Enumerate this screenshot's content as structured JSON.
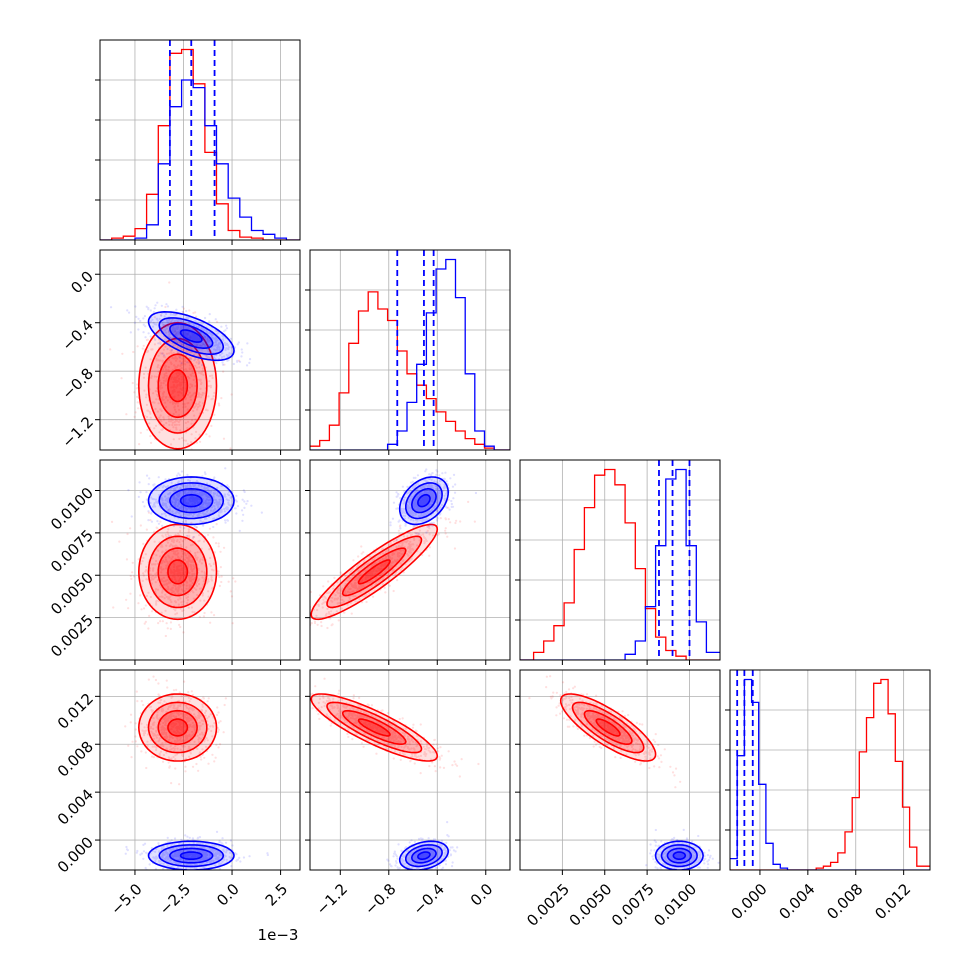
{
  "figure": {
    "x_offset_text": "1e−3",
    "colors": {
      "red": "#ff0000",
      "blue": "#0000ff"
    }
  },
  "chart_data": {
    "type": "scatter",
    "subtype": "corner-plot",
    "parameters": 4,
    "series": [
      {
        "color": "#0000ff",
        "means": [
          -0.0021,
          -0.51,
          0.0094,
          -0.0013
        ],
        "sds": [
          0.0011,
          0.1,
          0.0007,
          0.0006
        ],
        "corr_12": -0.6,
        "corr_23": 0.35,
        "corr_24": 0.3,
        "corr_34": 0.0,
        "quantile_lines": [
          [
            -0.0032,
            -0.0021,
            -0.0009
          ],
          [
            -0.73,
            -0.51,
            -0.43
          ],
          [
            0.0082,
            0.009,
            0.01
          ],
          [
            -0.0019,
            -0.0013,
            -0.0006
          ]
        ]
      },
      {
        "color": "#ff0000",
        "means": [
          -0.0028,
          -0.92,
          0.0052,
          0.0094
        ],
        "sds": [
          0.001,
          0.26,
          0.0014,
          0.0014
        ],
        "corr_23": 0.9,
        "corr_24": -0.85,
        "corr_34": -0.8
      }
    ],
    "panels": [
      {
        "row": 0,
        "col": 0,
        "kind": "hist",
        "xlim": [
          -0.0068,
          0.0035
        ],
        "ylim": [
          0,
          1.0
        ],
        "x_ticks": [
          -0.005,
          -0.0025,
          0.0,
          0.0025
        ],
        "x_tick_labels": [],
        "bins": [
          -0.0068,
          -0.0062,
          -0.0056,
          -0.005,
          -0.0044,
          -0.0038,
          -0.0032,
          -0.0026,
          -0.002,
          -0.0014,
          -0.0008,
          -0.0002,
          0.0004,
          0.001,
          0.0016,
          0.0022,
          0.0028,
          0.0035
        ],
        "counts_red": [
          0.0,
          0.01,
          0.02,
          0.06,
          0.24,
          0.6,
          0.98,
          1.0,
          0.82,
          0.46,
          0.19,
          0.05,
          0.015,
          0.01,
          0.0,
          0.0,
          0.0
        ],
        "counts_blue": [
          0.0,
          0.0,
          0.0,
          0.01,
          0.08,
          0.4,
          0.7,
          0.84,
          0.8,
          0.6,
          0.4,
          0.22,
          0.12,
          0.05,
          0.03,
          0.01,
          0.0
        ],
        "vlines": [
          -0.0032,
          -0.0021,
          -0.0009
        ]
      },
      {
        "row": 1,
        "col": 1,
        "kind": "hist",
        "xlim": [
          -1.45,
          0.2
        ],
        "ylim": [
          0,
          1.0
        ],
        "x_ticks": [
          -1.2,
          -0.8,
          -0.4,
          0.0
        ],
        "x_tick_labels": [],
        "bins": [
          -1.45,
          -1.37,
          -1.29,
          -1.21,
          -1.13,
          -1.05,
          -0.97,
          -0.89,
          -0.81,
          -0.73,
          -0.65,
          -0.57,
          -0.49,
          -0.41,
          -0.33,
          -0.25,
          -0.17,
          -0.09,
          -0.01,
          0.07,
          0.2
        ],
        "counts_red": [
          0.02,
          0.05,
          0.13,
          0.3,
          0.56,
          0.73,
          0.83,
          0.74,
          0.68,
          0.52,
          0.4,
          0.34,
          0.27,
          0.2,
          0.15,
          0.1,
          0.06,
          0.03,
          0.01,
          0.0
        ],
        "counts_blue": [
          0.0,
          0.0,
          0.0,
          0.0,
          0.0,
          0.0,
          0.0,
          0.0,
          0.03,
          0.1,
          0.25,
          0.45,
          0.72,
          0.95,
          1.0,
          0.8,
          0.4,
          0.1,
          0.02,
          0.0
        ],
        "vlines": [
          -0.73,
          -0.51,
          -0.43
        ]
      },
      {
        "row": 2,
        "col": 2,
        "kind": "hist",
        "xlim": [
          0.0,
          0.0118
        ],
        "ylim": [
          0,
          1.0
        ],
        "x_ticks": [
          0.0025,
          0.005,
          0.0075,
          0.01
        ],
        "x_tick_labels": [],
        "bins": [
          0.0,
          0.0008,
          0.0014,
          0.002,
          0.0026,
          0.0032,
          0.0038,
          0.0044,
          0.005,
          0.0056,
          0.0062,
          0.0068,
          0.0074,
          0.008,
          0.0086,
          0.0092,
          0.0098,
          0.0104,
          0.011,
          0.0118
        ],
        "counts_red": [
          0.0,
          0.04,
          0.1,
          0.18,
          0.3,
          0.58,
          0.8,
          0.97,
          1.0,
          0.92,
          0.72,
          0.48,
          0.27,
          0.12,
          0.05,
          0.02,
          0.0,
          0.0,
          0.0
        ],
        "counts_blue": [
          0.0,
          0.0,
          0.0,
          0.0,
          0.0,
          0.0,
          0.0,
          0.0,
          0.0,
          0.0,
          0.03,
          0.1,
          0.28,
          0.6,
          0.95,
          1.0,
          0.6,
          0.2,
          0.04
        ],
        "vlines": [
          0.0082,
          0.009,
          0.01
        ]
      },
      {
        "row": 3,
        "col": 3,
        "kind": "hist",
        "xlim": [
          -0.0025,
          0.0142
        ],
        "ylim": [
          0,
          1.0
        ],
        "x_ticks": [
          0.0,
          0.004,
          0.008,
          0.012
        ],
        "x_tick_labels": [
          "0.000",
          "0.004",
          "0.008",
          "0.012"
        ],
        "bins": [
          -0.0025,
          -0.0019,
          -0.0013,
          -0.0007,
          -0.0001,
          0.0005,
          0.0011,
          0.0017,
          0.0023,
          0.0029,
          0.0035,
          0.0041,
          0.0047,
          0.0053,
          0.0059,
          0.0065,
          0.0071,
          0.0077,
          0.0083,
          0.0089,
          0.0095,
          0.0101,
          0.0107,
          0.0113,
          0.0119,
          0.0125,
          0.0131,
          0.0142
        ],
        "counts_red": [
          0,
          0,
          0,
          0,
          0,
          0,
          0,
          0,
          0,
          0,
          0,
          0,
          0.01,
          0.02,
          0.04,
          0.09,
          0.2,
          0.38,
          0.62,
          0.8,
          0.98,
          1.0,
          0.82,
          0.57,
          0.33,
          0.12,
          0.02
        ],
        "counts_blue": [
          0.06,
          0.6,
          1.0,
          0.88,
          0.45,
          0.14,
          0.03,
          0.01,
          0,
          0,
          0,
          0,
          0,
          0,
          0,
          0,
          0,
          0,
          0,
          0,
          0,
          0,
          0,
          0,
          0,
          0,
          0
        ],
        "vlines": [
          -0.0019,
          -0.0013,
          -0.0006
        ]
      },
      {
        "row": 1,
        "col": 0,
        "kind": "2d",
        "xlim": [
          -0.0068,
          0.0035
        ],
        "ylim": [
          -1.45,
          0.2
        ],
        "x_ticks": [
          -0.005,
          -0.0025,
          0.0,
          0.0025
        ],
        "x_tick_labels": [],
        "y_ticks": [
          -1.2,
          -0.8,
          -0.4,
          0.0
        ],
        "y_tick_labels": [
          "−1.2",
          "−0.8",
          "−0.4",
          "0.0"
        ],
        "xi": 0,
        "yi": 1
      },
      {
        "row": 2,
        "col": 0,
        "kind": "2d",
        "xlim": [
          -0.0068,
          0.0035
        ],
        "ylim": [
          0.0,
          0.0118
        ],
        "x_ticks": [
          -0.005,
          -0.0025,
          0.0,
          0.0025
        ],
        "x_tick_labels": [],
        "y_ticks": [
          0.0025,
          0.005,
          0.0075,
          0.01
        ],
        "y_tick_labels": [
          "0.0025",
          "0.0050",
          "0.0075",
          "0.0100"
        ],
        "xi": 0,
        "yi": 2
      },
      {
        "row": 2,
        "col": 1,
        "kind": "2d",
        "xlim": [
          -1.45,
          0.2
        ],
        "ylim": [
          0.0,
          0.0118
        ],
        "x_ticks": [
          -1.2,
          -0.8,
          -0.4,
          0.0
        ],
        "x_tick_labels": [],
        "y_ticks": [
          0.0025,
          0.005,
          0.0075,
          0.01
        ],
        "y_tick_labels": [],
        "xi": 1,
        "yi": 2
      },
      {
        "row": 3,
        "col": 0,
        "kind": "2d",
        "xlim": [
          -0.0068,
          0.0035
        ],
        "ylim": [
          -0.0025,
          0.0142
        ],
        "x_ticks": [
          -0.005,
          -0.0025,
          0.0,
          0.0025
        ],
        "x_tick_labels": [
          "−5.0",
          "−2.5",
          "0.0",
          "2.5"
        ],
        "y_ticks": [
          0.0,
          0.004,
          0.008,
          0.012
        ],
        "y_tick_labels": [
          "0.000",
          "0.004",
          "0.008",
          "0.012"
        ],
        "xi": 0,
        "yi": 3
      },
      {
        "row": 3,
        "col": 1,
        "kind": "2d",
        "xlim": [
          -1.45,
          0.2
        ],
        "ylim": [
          -0.0025,
          0.0142
        ],
        "x_ticks": [
          -1.2,
          -0.8,
          -0.4,
          0.0
        ],
        "x_tick_labels": [
          "−1.2",
          "−0.8",
          "−0.4",
          "0.0"
        ],
        "y_ticks": [
          0.0,
          0.004,
          0.008,
          0.012
        ],
        "y_tick_labels": [],
        "xi": 1,
        "yi": 3
      },
      {
        "row": 3,
        "col": 2,
        "kind": "2d",
        "xlim": [
          0.0,
          0.0118
        ],
        "ylim": [
          -0.0025,
          0.0142
        ],
        "x_ticks": [
          0.0025,
          0.005,
          0.0075,
          0.01
        ],
        "x_tick_labels": [
          "0.0025",
          "0.0050",
          "0.0075",
          "0.0100"
        ],
        "y_ticks": [
          0.0,
          0.004,
          0.008,
          0.012
        ],
        "y_tick_labels": [],
        "xi": 2,
        "yi": 3
      }
    ]
  }
}
